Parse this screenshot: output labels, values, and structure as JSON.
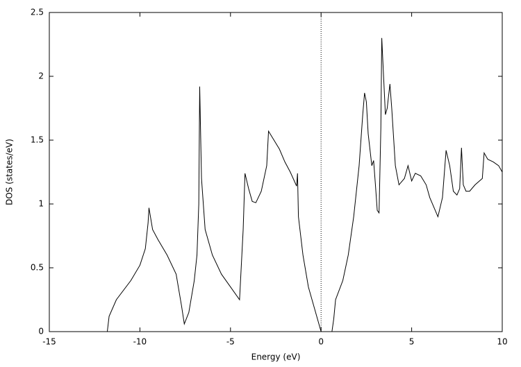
{
  "chart_data": {
    "type": "line",
    "xlabel": "Energy (eV)",
    "ylabel": "DOS (states/eV)",
    "xlim": [
      -15,
      10
    ],
    "ylim": [
      0,
      2.5
    ],
    "xticks": [
      -15,
      -10,
      -5,
      0,
      5,
      10
    ],
    "yticks": [
      0,
      0.5,
      1,
      1.5,
      2,
      2.5
    ],
    "vline_x": 0,
    "series": [
      {
        "color": "#000000",
        "x": [
          -11.8,
          -11.7,
          -11.3,
          -10.5,
          -10.0,
          -9.7,
          -9.55,
          -9.5,
          -9.3,
          -9.0,
          -8.5,
          -8.0,
          -7.7,
          -7.55,
          -7.3,
          -7.0,
          -6.85,
          -6.75,
          -6.7,
          -6.6,
          -6.4,
          -6.0,
          -5.5,
          -5.0,
          -4.5,
          -4.3,
          -4.2,
          -4.0,
          -3.8,
          -3.6,
          -3.3,
          -3.0,
          -2.9,
          -2.6,
          -2.3,
          -2.0,
          -1.7,
          -1.35,
          -1.3,
          -1.25,
          -1.0,
          -0.7,
          -0.4,
          -0.2,
          0.0,
          0.6,
          0.7,
          0.8,
          1.2,
          1.5,
          1.8,
          2.1,
          2.3,
          2.4,
          2.5,
          2.6,
          2.8,
          2.9,
          3.0,
          3.1,
          3.2,
          3.3,
          3.35,
          3.45,
          3.55,
          3.65,
          3.8,
          3.9,
          4.1,
          4.3,
          4.6,
          4.8,
          5.0,
          5.2,
          5.5,
          5.8,
          6.0,
          6.3,
          6.45,
          6.7,
          6.9,
          7.1,
          7.3,
          7.5,
          7.65,
          7.75,
          7.85,
          8.0,
          8.2,
          8.5,
          8.9,
          9.0,
          9.2,
          9.5,
          9.8,
          10.0
        ],
        "values": [
          0,
          0.12,
          0.25,
          0.4,
          0.52,
          0.65,
          0.85,
          0.97,
          0.8,
          0.72,
          0.6,
          0.45,
          0.2,
          0.06,
          0.15,
          0.4,
          0.6,
          1.0,
          1.92,
          1.2,
          0.8,
          0.6,
          0.45,
          0.35,
          0.25,
          0.8,
          1.24,
          1.12,
          1.02,
          1.01,
          1.1,
          1.3,
          1.57,
          1.5,
          1.43,
          1.33,
          1.25,
          1.14,
          1.24,
          0.9,
          0.6,
          0.35,
          0.2,
          0.1,
          0,
          0,
          0.1,
          0.25,
          0.4,
          0.6,
          0.9,
          1.3,
          1.7,
          1.87,
          1.8,
          1.55,
          1.3,
          1.34,
          1.15,
          0.95,
          0.93,
          1.6,
          2.3,
          2.0,
          1.7,
          1.75,
          1.94,
          1.75,
          1.3,
          1.15,
          1.2,
          1.3,
          1.18,
          1.24,
          1.22,
          1.15,
          1.05,
          0.95,
          0.9,
          1.05,
          1.42,
          1.3,
          1.1,
          1.07,
          1.12,
          1.44,
          1.15,
          1.1,
          1.1,
          1.15,
          1.2,
          1.4,
          1.35,
          1.33,
          1.3,
          1.25
        ]
      }
    ]
  }
}
